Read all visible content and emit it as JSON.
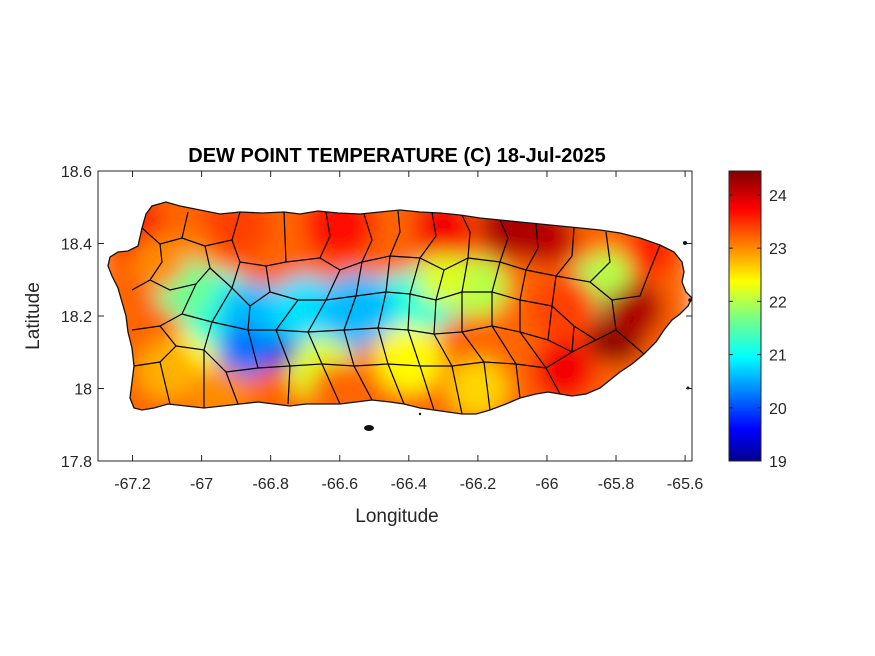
{
  "chart_data": {
    "type": "heatmap",
    "title": "DEW POINT TEMPERATURE (C) 18-Jul-2025",
    "xlabel": "Longitude",
    "ylabel": "Latitude",
    "xlim": [
      -67.3,
      -65.58
    ],
    "ylim": [
      17.8,
      18.6
    ],
    "x_ticks": [
      -67.2,
      -67,
      -66.8,
      -66.6,
      -66.4,
      -66.2,
      -66,
      -65.8,
      -65.6
    ],
    "x_tick_labels": [
      "-67.2",
      "-67",
      "-66.8",
      "-66.6",
      "-66.4",
      "-66.2",
      "-66",
      "-65.8",
      "-65.6"
    ],
    "y_ticks": [
      17.8,
      18,
      18.2,
      18.4,
      18.6
    ],
    "y_tick_labels": [
      "17.8",
      "18",
      "18.2",
      "18.4",
      "18.6"
    ],
    "colorbar": {
      "colormap": "jet",
      "min": 19,
      "max": 24.45,
      "ticks": [
        19,
        20,
        21,
        22,
        23,
        24
      ],
      "tick_labels": [
        "19",
        "20",
        "21",
        "22",
        "23",
        "24"
      ]
    },
    "field_description_points": [
      {
        "lon": -67.2,
        "lat": 18.45,
        "value": 23.6
      },
      {
        "lon": -67.0,
        "lat": 18.35,
        "value": 23.0
      },
      {
        "lon": -67.0,
        "lat": 18.1,
        "value": 22.4
      },
      {
        "lon": -66.78,
        "lat": 18.14,
        "value": 19.4
      },
      {
        "lon": -66.6,
        "lat": 18.17,
        "value": 20.2
      },
      {
        "lon": -66.45,
        "lat": 18.23,
        "value": 21.0
      },
      {
        "lon": -66.3,
        "lat": 18.45,
        "value": 23.8
      },
      {
        "lon": -66.0,
        "lat": 18.42,
        "value": 24.1
      },
      {
        "lon": -65.8,
        "lat": 18.15,
        "value": 24.4
      },
      {
        "lon": -66.2,
        "lat": 18.0,
        "value": 22.6
      },
      {
        "lon": -65.85,
        "lat": 18.28,
        "value": 21.8
      }
    ],
    "grid": false,
    "legend": "colorbar right"
  }
}
